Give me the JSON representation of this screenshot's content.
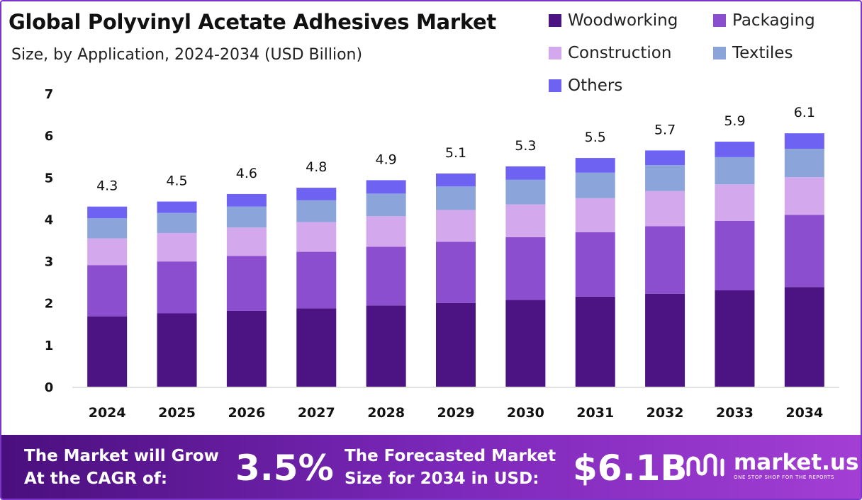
{
  "header": {
    "title": "Global Polyvinyl Acetate Adhesives Market",
    "subtitle": "Size, by Application, 2024-2034 (USD Billion)"
  },
  "chart_data": {
    "type": "bar",
    "stacked": true,
    "categories": [
      "2024",
      "2025",
      "2026",
      "2027",
      "2028",
      "2029",
      "2030",
      "2031",
      "2032",
      "2033",
      "2034"
    ],
    "series": [
      {
        "name": "Woodworking",
        "color": "#4c1383",
        "values": [
          1.68,
          1.75,
          1.81,
          1.87,
          1.94,
          2.0,
          2.07,
          2.15,
          2.22,
          2.3,
          2.38
        ]
      },
      {
        "name": "Packaging",
        "color": "#8b4ecf",
        "values": [
          1.22,
          1.24,
          1.31,
          1.35,
          1.4,
          1.46,
          1.5,
          1.54,
          1.61,
          1.66,
          1.72
        ]
      },
      {
        "name": "Construction",
        "color": "#d4a8ec",
        "values": [
          0.64,
          0.68,
          0.68,
          0.71,
          0.73,
          0.76,
          0.78,
          0.81,
          0.84,
          0.87,
          0.9
        ]
      },
      {
        "name": "Textiles",
        "color": "#8ba4da",
        "values": [
          0.48,
          0.48,
          0.5,
          0.52,
          0.54,
          0.56,
          0.59,
          0.61,
          0.62,
          0.65,
          0.68
        ]
      },
      {
        "name": "Others",
        "color": "#6e62f2",
        "values": [
          0.28,
          0.27,
          0.3,
          0.3,
          0.32,
          0.31,
          0.32,
          0.35,
          0.35,
          0.37,
          0.37
        ]
      }
    ],
    "totals": [
      "4.3",
      "4.5",
      "4.6",
      "4.8",
      "4.9",
      "5.1",
      "5.3",
      "5.5",
      "5.7",
      "5.9",
      "6.1"
    ],
    "ylim": [
      0,
      7
    ],
    "yticks": [
      "0",
      "1",
      "2",
      "3",
      "4",
      "5",
      "6",
      "7"
    ],
    "title": "Global Polyvinyl Acetate Adhesives Market",
    "xlabel": "",
    "ylabel": "",
    "legend": "top-right",
    "grid": false
  },
  "footer": {
    "cagr_text": "The Market will Grow At the CAGR of:",
    "cagr_value": "3.5%",
    "size_text": "The Forecasted Market Size for 2034 in USD:",
    "size_value": "$6.1B"
  },
  "brand": {
    "name": "market.us",
    "tagline": "ONE STOP SHOP FOR THE REPORTS"
  }
}
